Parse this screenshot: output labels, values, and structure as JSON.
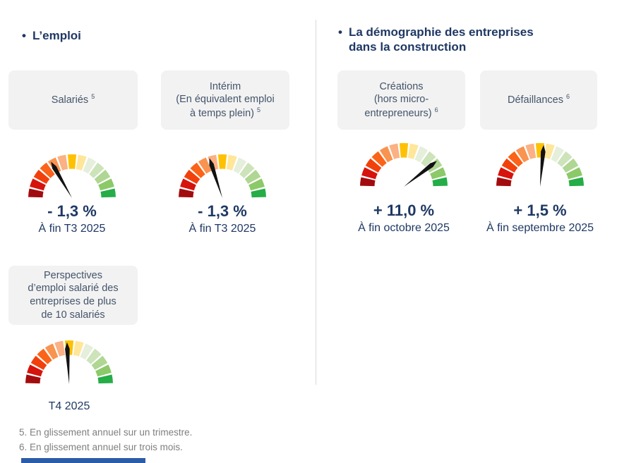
{
  "palette": {
    "navy": "#1F3864",
    "card_bg": "#F2F2F2",
    "card_text": "#44546A",
    "note_gray": "#7F7F7F",
    "divider": "#D9D9D9",
    "needle": "#121212",
    "footer_bar": "#2B5CA8"
  },
  "left_section": {
    "bullet": "•",
    "title": "L’emploi"
  },
  "right_section": {
    "bullet": "•",
    "title_line1": "La démographie des entreprises",
    "title_line2": "dans la construction"
  },
  "footnotes": [
    "5. En glissement annuel sur un trimestre.",
    "6. En glissement annuel sur trois mois."
  ],
  "chart_data": {
    "type": "gauge-dashboard",
    "description": "Semicircular 13-segment red-to-green gauges with black needles",
    "segment_colors": [
      "#A30C0E",
      "#D6130C",
      "#F2400C",
      "#FB6318",
      "#F99350",
      "#FBB183",
      "#FEC101",
      "#FFE699",
      "#E5EFDC",
      "#CDE3BA",
      "#AFD693",
      "#8CC969",
      "#25AD47"
    ],
    "gauges": [
      {
        "id": "salaries",
        "card": {
          "lines": [
            "Salariés"
          ],
          "sup": "5"
        },
        "value": "- 1,3 %",
        "date": "À fin T3 2025",
        "needle_deg": -30
      },
      {
        "id": "interim",
        "card": {
          "lines": [
            "Intérim",
            "(En équivalent emploi",
            "à temps plein)"
          ],
          "sup": "5"
        },
        "value": "- 1,3 %",
        "date": "À fin T3 2025",
        "needle_deg": -18
      },
      {
        "id": "creations",
        "card": {
          "lines": [
            "Créations",
            "(hors micro-",
            "entrepreneurs)"
          ],
          "sup": "6"
        },
        "value": "+ 11,0 %",
        "date": "À fin octobre 2025",
        "needle_deg": 52
      },
      {
        "id": "defaillances",
        "card": {
          "lines": [
            "Défaillances"
          ],
          "sup": "6"
        },
        "value": "+ 1,5 %",
        "date": "À fin septembre 2025",
        "needle_deg": 5
      },
      {
        "id": "perspectives",
        "card": {
          "lines": [
            "Perspectives",
            "d’emploi salarié des",
            "entreprises de plus",
            "de 10 salariés"
          ],
          "sup": null
        },
        "value": null,
        "date": "T4 2025",
        "needle_deg": -3
      }
    ]
  }
}
